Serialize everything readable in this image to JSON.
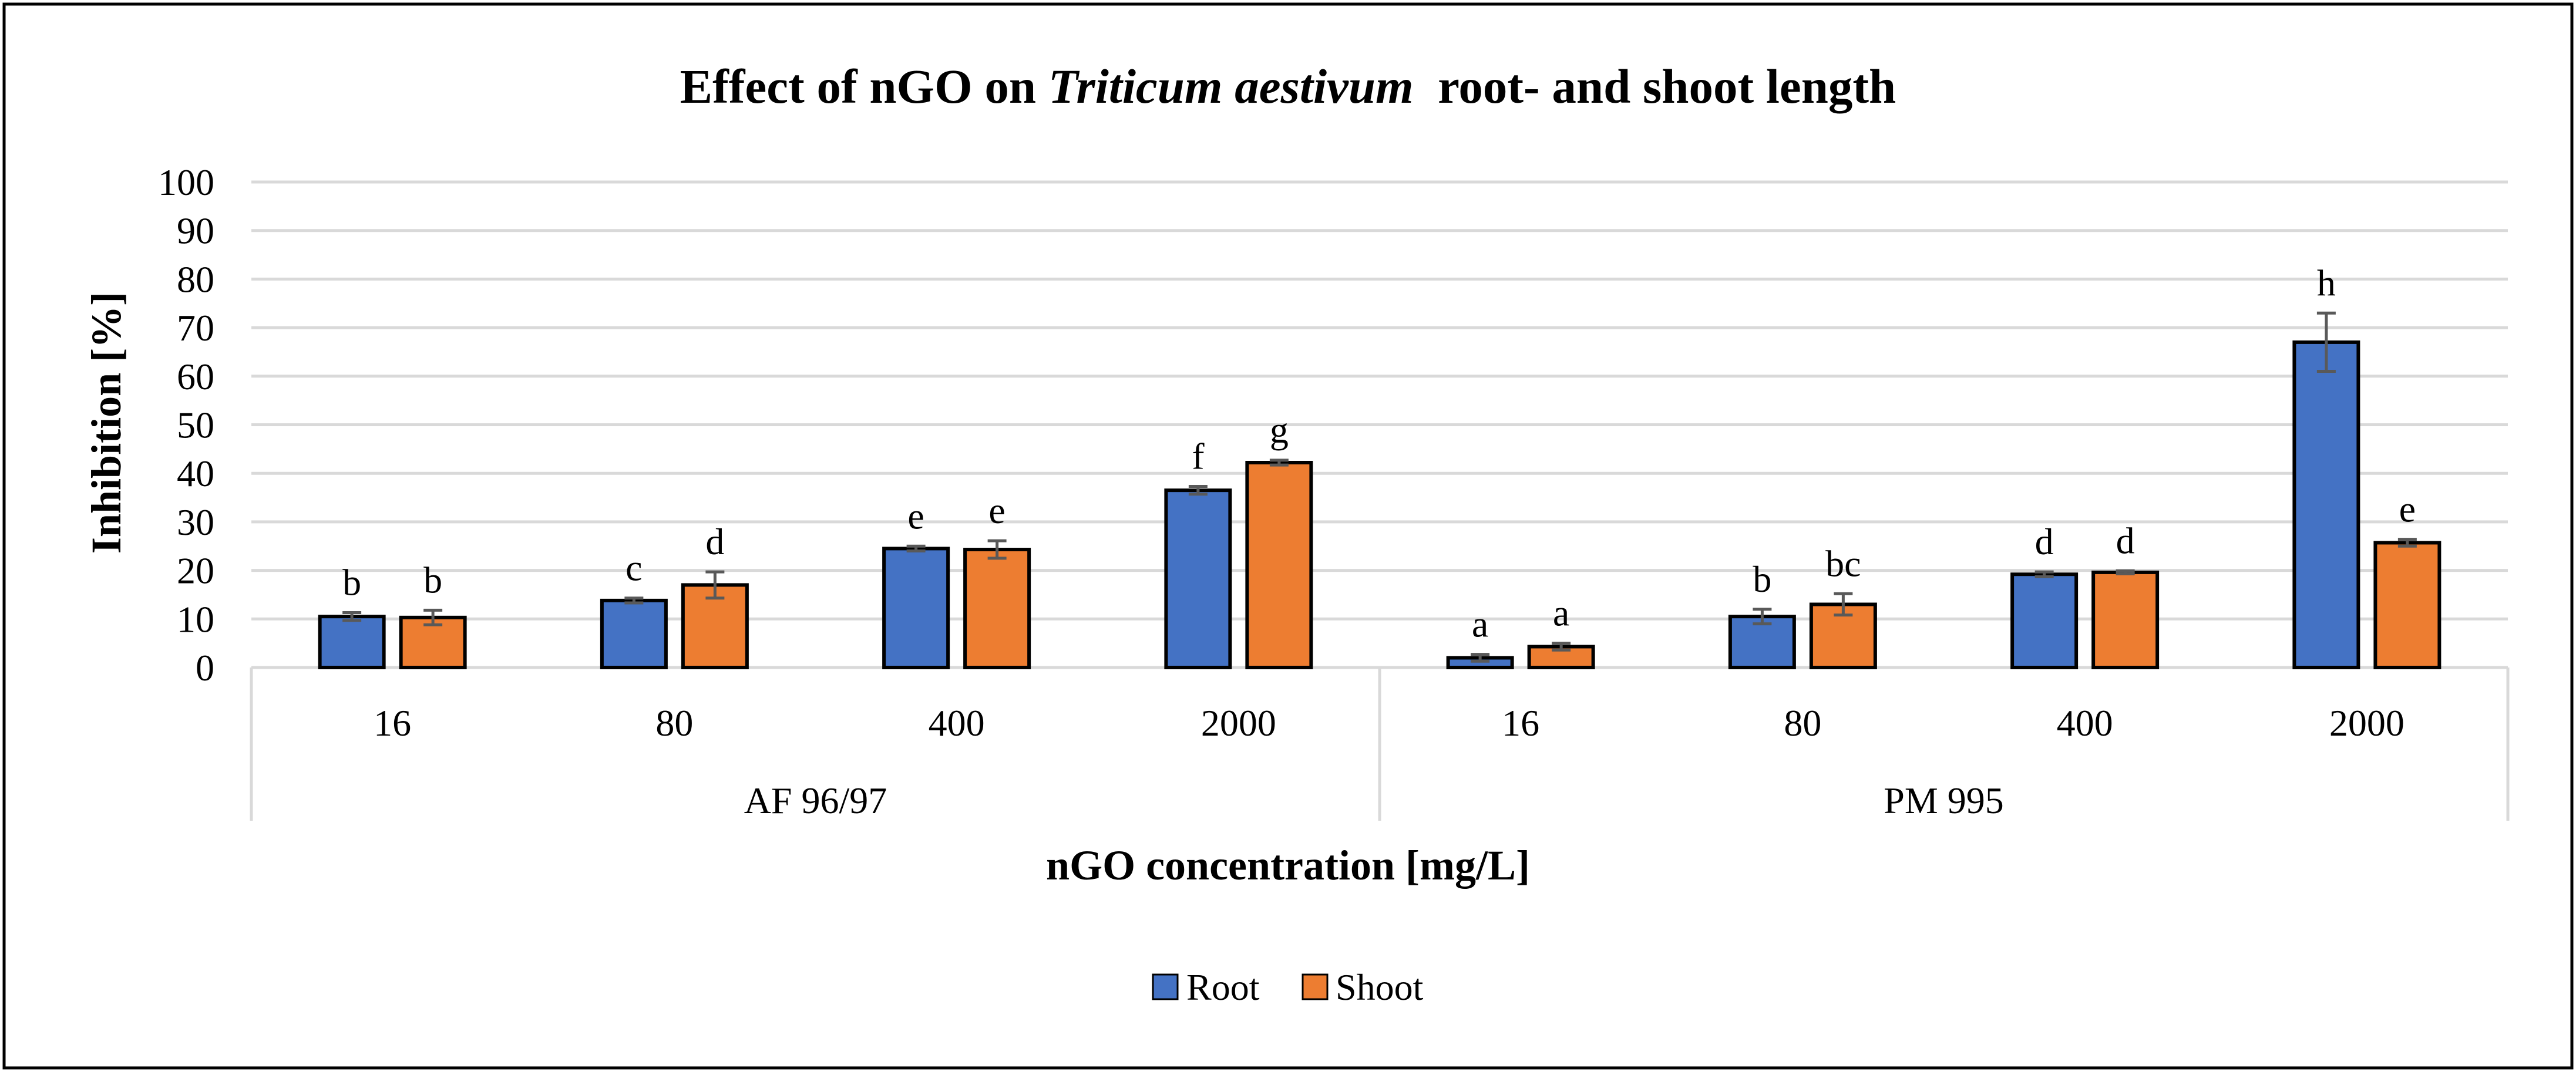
{
  "chart_data": {
    "type": "bar",
    "title_parts": [
      "Effect of nGO on ",
      "Triticum aestivum",
      "  root- and shoot length"
    ],
    "xlabel": "nGO concentration [mg/L]",
    "ylabel": "Inhibition [%]",
    "ylim": [
      0,
      100
    ],
    "yticks": [
      "0",
      "10",
      "20",
      "30",
      "40",
      "50",
      "60",
      "70",
      "80",
      "90",
      "100"
    ],
    "groups": [
      {
        "name": "AF 96/97",
        "categories": [
          "16",
          "80",
          "400",
          "2000"
        ]
      },
      {
        "name": "PM 995",
        "categories": [
          "16",
          "80",
          "400",
          "2000"
        ]
      }
    ],
    "series": [
      {
        "name": "Root",
        "color": "#4472C4",
        "values": [
          10.5,
          13.8,
          24.5,
          36.5,
          2.0,
          10.5,
          19.2,
          67.0
        ],
        "errors": [
          0.8,
          0.5,
          0.5,
          0.8,
          0.7,
          1.5,
          0.5,
          6.0
        ],
        "labels": [
          "b",
          "c",
          "e",
          "f",
          "a",
          "b",
          "d",
          "h"
        ]
      },
      {
        "name": "Shoot",
        "color": "#ED7D31",
        "values": [
          10.3,
          17.0,
          24.3,
          42.2,
          4.3,
          13.0,
          19.6,
          25.7
        ],
        "errors": [
          1.5,
          2.7,
          1.8,
          0.5,
          0.7,
          2.2,
          0.3,
          0.7
        ],
        "labels": [
          "b",
          "d",
          "e",
          "g",
          "a",
          "bc",
          "d",
          "e"
        ]
      }
    ],
    "legend_position": "bottom-center",
    "grid": true
  }
}
